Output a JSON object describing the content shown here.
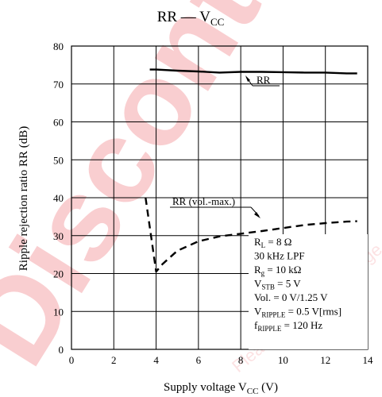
{
  "chart_data": {
    "type": "line",
    "title": {
      "main": "RR — V",
      "sub": "CC"
    },
    "xlabel": {
      "main": "Supply voltage  V",
      "sub": "CC",
      "unit": "  (V)"
    },
    "ylabel": "Ripple rejection ratio  RR  (dB)",
    "xlim": [
      0,
      14
    ],
    "ylim": [
      0,
      80
    ],
    "x_ticks": [
      "0",
      "2",
      "4",
      "6",
      "8",
      "10",
      "12",
      "14"
    ],
    "y_ticks": [
      "0",
      "10",
      "20",
      "30",
      "40",
      "50",
      "60",
      "70",
      "80"
    ],
    "grid": true,
    "series": [
      {
        "name": "RR",
        "style": "solid",
        "x": [
          3.7,
          4.0,
          5.0,
          6.0,
          7.0,
          8.0,
          9.0,
          10.0,
          11.0,
          12.0,
          13.0,
          13.5
        ],
        "y": [
          73.8,
          73.8,
          73.5,
          73.3,
          73.0,
          73.2,
          73.2,
          73.1,
          73.0,
          73.0,
          72.8,
          72.8
        ]
      },
      {
        "name": "RR (vol.-max.)",
        "style": "dashed",
        "x": [
          3.5,
          4.0,
          4.3,
          5.0,
          6.0,
          7.0,
          8.0,
          9.0,
          10.0,
          11.0,
          12.0,
          13.0,
          13.5
        ],
        "y": [
          40.0,
          20.5,
          22.5,
          26.0,
          28.5,
          29.8,
          30.5,
          31.2,
          32.0,
          32.8,
          33.3,
          33.7,
          33.8
        ]
      }
    ],
    "conditions": [
      {
        "main": "R",
        "sub": "L",
        "rest": " = 8 Ω"
      },
      {
        "main": "30 kHz LPF",
        "sub": "",
        "rest": ""
      },
      {
        "main": "R",
        "sub": "g",
        "rest": " = 10 kΩ"
      },
      {
        "main": "V",
        "sub": "STB",
        "rest": " = 5 V"
      },
      {
        "main": "Vol. = 0 V/1.25 V",
        "sub": "",
        "rest": ""
      },
      {
        "main": "V",
        "sub": "RIPPLE",
        "rest": " = 0.5 V[rms]"
      },
      {
        "main": "f",
        "sub": "RIPPLE",
        "rest": " = 120 Hz"
      }
    ],
    "colors": {
      "axes": "#000000",
      "watermark": "#e8252f"
    }
  },
  "watermark": {
    "big_text": "Discontinued",
    "small_text": "Please recycle this page."
  }
}
